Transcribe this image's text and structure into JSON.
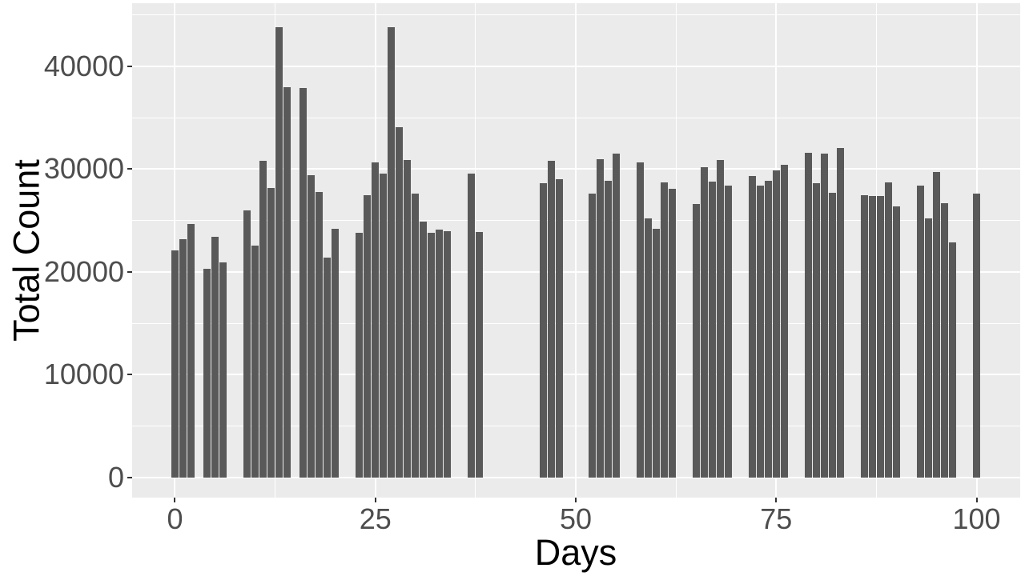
{
  "chart_data": {
    "type": "bar",
    "title": "",
    "xlabel": "Days",
    "ylabel": "Total Count",
    "x": [
      0,
      1,
      2,
      4,
      5,
      6,
      9,
      10,
      11,
      12,
      13,
      14,
      16,
      17,
      18,
      19,
      20,
      23,
      24,
      25,
      26,
      27,
      28,
      29,
      30,
      31,
      32,
      33,
      34,
      37,
      38,
      46,
      47,
      48,
      52,
      53,
      54,
      55,
      58,
      59,
      60,
      61,
      62,
      65,
      66,
      67,
      68,
      69,
      72,
      73,
      74,
      75,
      76,
      79,
      80,
      81,
      82,
      83,
      86,
      87,
      88,
      89,
      90,
      93,
      94,
      95,
      96,
      97,
      100
    ],
    "values": [
      22100,
      23200,
      24700,
      20300,
      23400,
      20900,
      26000,
      22600,
      30800,
      28200,
      43800,
      38000,
      37900,
      29400,
      27800,
      21400,
      24200,
      23800,
      27500,
      30700,
      29600,
      43800,
      34100,
      30900,
      27600,
      24900,
      23800,
      24100,
      24000,
      29600,
      23900,
      28600,
      30800,
      29000,
      27600,
      31000,
      28900,
      31500,
      30700,
      25200,
      24200,
      28700,
      28100,
      26600,
      30200,
      28800,
      30900,
      28400,
      29300,
      28400,
      28900,
      29900,
      30400,
      31600,
      28600,
      31500,
      27700,
      32100,
      27500,
      27400,
      27400,
      28700,
      26400,
      28400,
      25200,
      29700,
      26700,
      22900,
      27600
    ],
    "bar_width_days": 0.9,
    "x_ticks": [
      0,
      25,
      50,
      75,
      100
    ],
    "x_tick_labels": [
      "0",
      "25",
      "50",
      "75",
      "100"
    ],
    "x_minor_ticks": [
      12.5,
      37.5,
      62.5,
      87.5
    ],
    "y_ticks": [
      0,
      10000,
      20000,
      30000,
      40000
    ],
    "y_tick_labels": [
      "0",
      "10000",
      "20000",
      "30000",
      "40000"
    ],
    "y_minor_ticks": [
      5000,
      15000,
      25000,
      35000,
      45000
    ],
    "xlim": [
      -5.34,
      105.44
    ],
    "ylim": [
      -1946,
      46148
    ],
    "grid": "major+minor",
    "legend": "none",
    "colors": {
      "bar_fill": "#595959",
      "panel_background": "#EBEBEB",
      "gridline": "#FFFFFF",
      "tick_mark": "#333333",
      "tick_label": "#4D4D4D",
      "axis_title": "#000000",
      "figure_background": "#FFFFFF"
    }
  }
}
